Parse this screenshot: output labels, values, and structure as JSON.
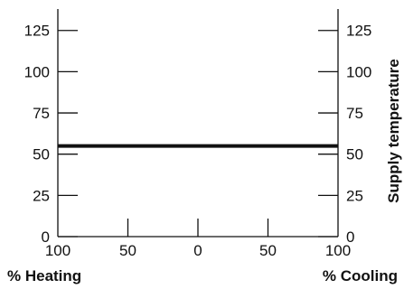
{
  "chart_data": {
    "type": "line",
    "title": "",
    "x_left_label": "% Heating",
    "x_right_label": "% Cooling",
    "y_right_label": "Supply temperature",
    "x_ticks": [
      "100",
      "50",
      "0",
      "50",
      "100"
    ],
    "y_ticks": [
      0,
      25,
      50,
      75,
      100,
      125
    ],
    "ylim": [
      0,
      138
    ],
    "grid": false,
    "series": [
      {
        "name": "",
        "x": [
          -100,
          100
        ],
        "y": [
          55,
          55
        ]
      }
    ]
  }
}
